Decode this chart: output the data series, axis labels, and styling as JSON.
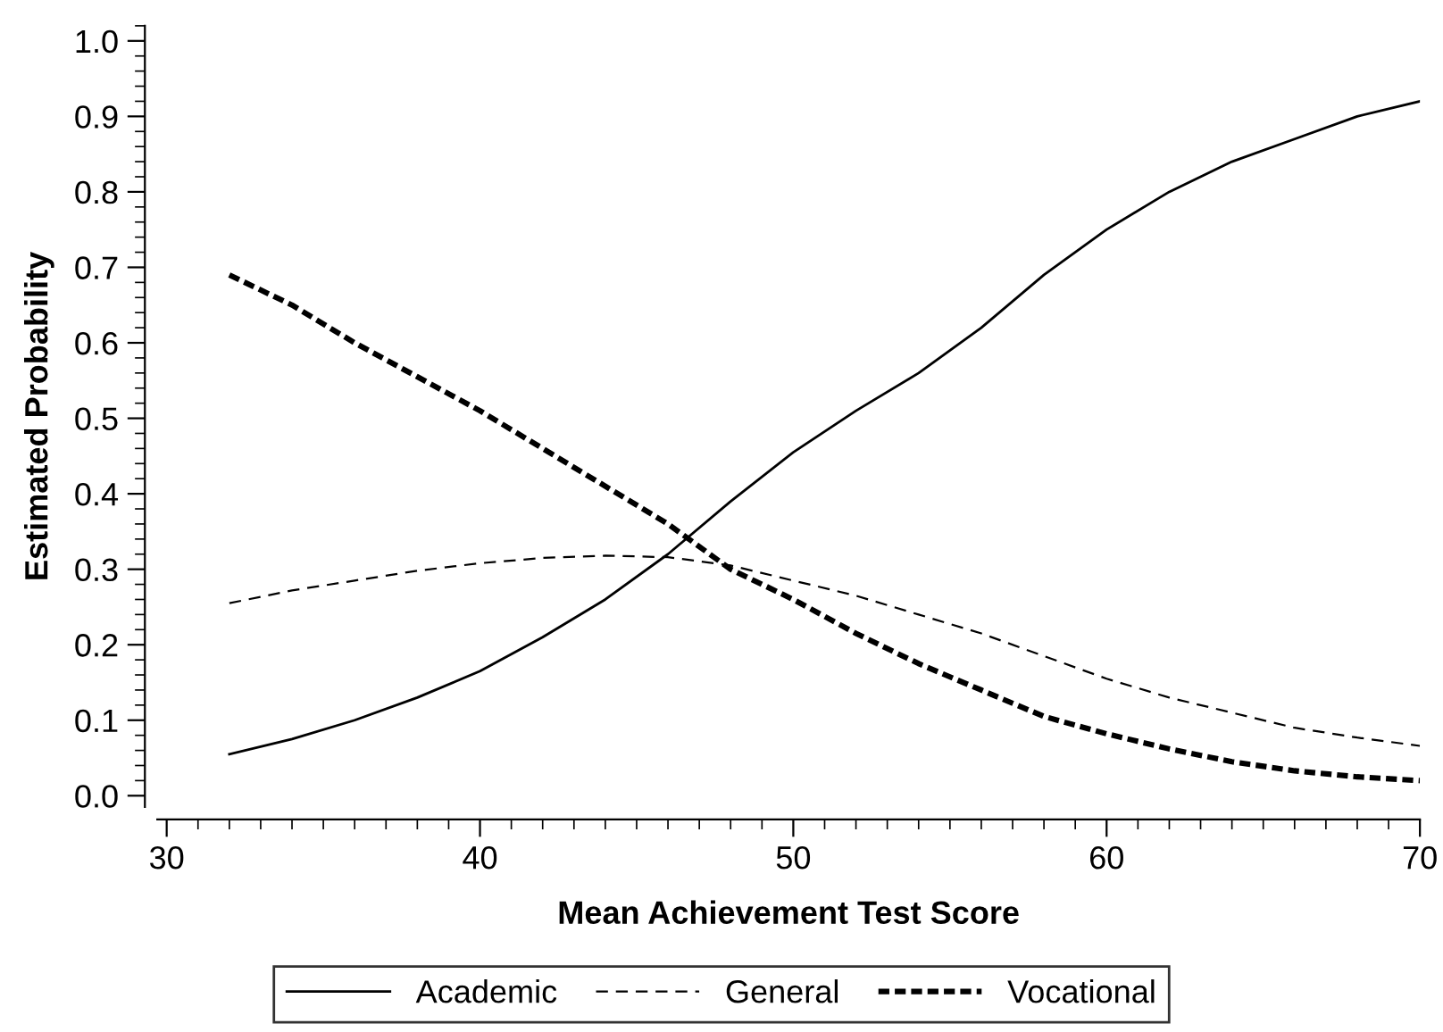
{
  "chart_data": {
    "type": "line",
    "xlabel": "Mean Achievement Test Score",
    "ylabel": "Estimated Probability",
    "x": [
      32,
      34,
      36,
      38,
      40,
      42,
      44,
      46,
      48,
      50,
      52,
      54,
      56,
      58,
      60,
      62,
      64,
      66,
      68,
      70
    ],
    "series": [
      {
        "name": "Academic",
        "color": "#000000",
        "line_style": "solid",
        "values": [
          0.055,
          0.075,
          0.1,
          0.13,
          0.165,
          0.21,
          0.26,
          0.32,
          0.39,
          0.455,
          0.51,
          0.56,
          0.62,
          0.69,
          0.75,
          0.8,
          0.84,
          0.87,
          0.9,
          0.92
        ]
      },
      {
        "name": "General",
        "color": "#000000",
        "line_style": "dashed",
        "values": [
          0.255,
          0.272,
          0.285,
          0.298,
          0.308,
          0.315,
          0.318,
          0.316,
          0.305,
          0.285,
          0.265,
          0.24,
          0.215,
          0.185,
          0.155,
          0.13,
          0.11,
          0.09,
          0.077,
          0.066
        ]
      },
      {
        "name": "Vocational",
        "color": "#000000",
        "line_style": "dotted",
        "values": [
          0.69,
          0.65,
          0.6,
          0.555,
          0.51,
          0.46,
          0.41,
          0.36,
          0.3,
          0.26,
          0.215,
          0.175,
          0.14,
          0.105,
          0.082,
          0.062,
          0.045,
          0.033,
          0.025,
          0.02
        ]
      }
    ],
    "xlim": [
      29.7,
      70
    ],
    "ylim": [
      -0.015,
      1.02
    ],
    "xticks": [
      30,
      40,
      50,
      60,
      70
    ],
    "yticks": [
      {
        "value": 0,
        "label": "0.0"
      },
      0.1,
      0.2,
      0.3,
      0.4,
      0.5,
      0.6,
      0.7,
      0.8,
      0.9,
      {
        "value": 1,
        "label": "1.0"
      }
    ],
    "grid": false,
    "legend": "bottom",
    "marker": "none"
  }
}
